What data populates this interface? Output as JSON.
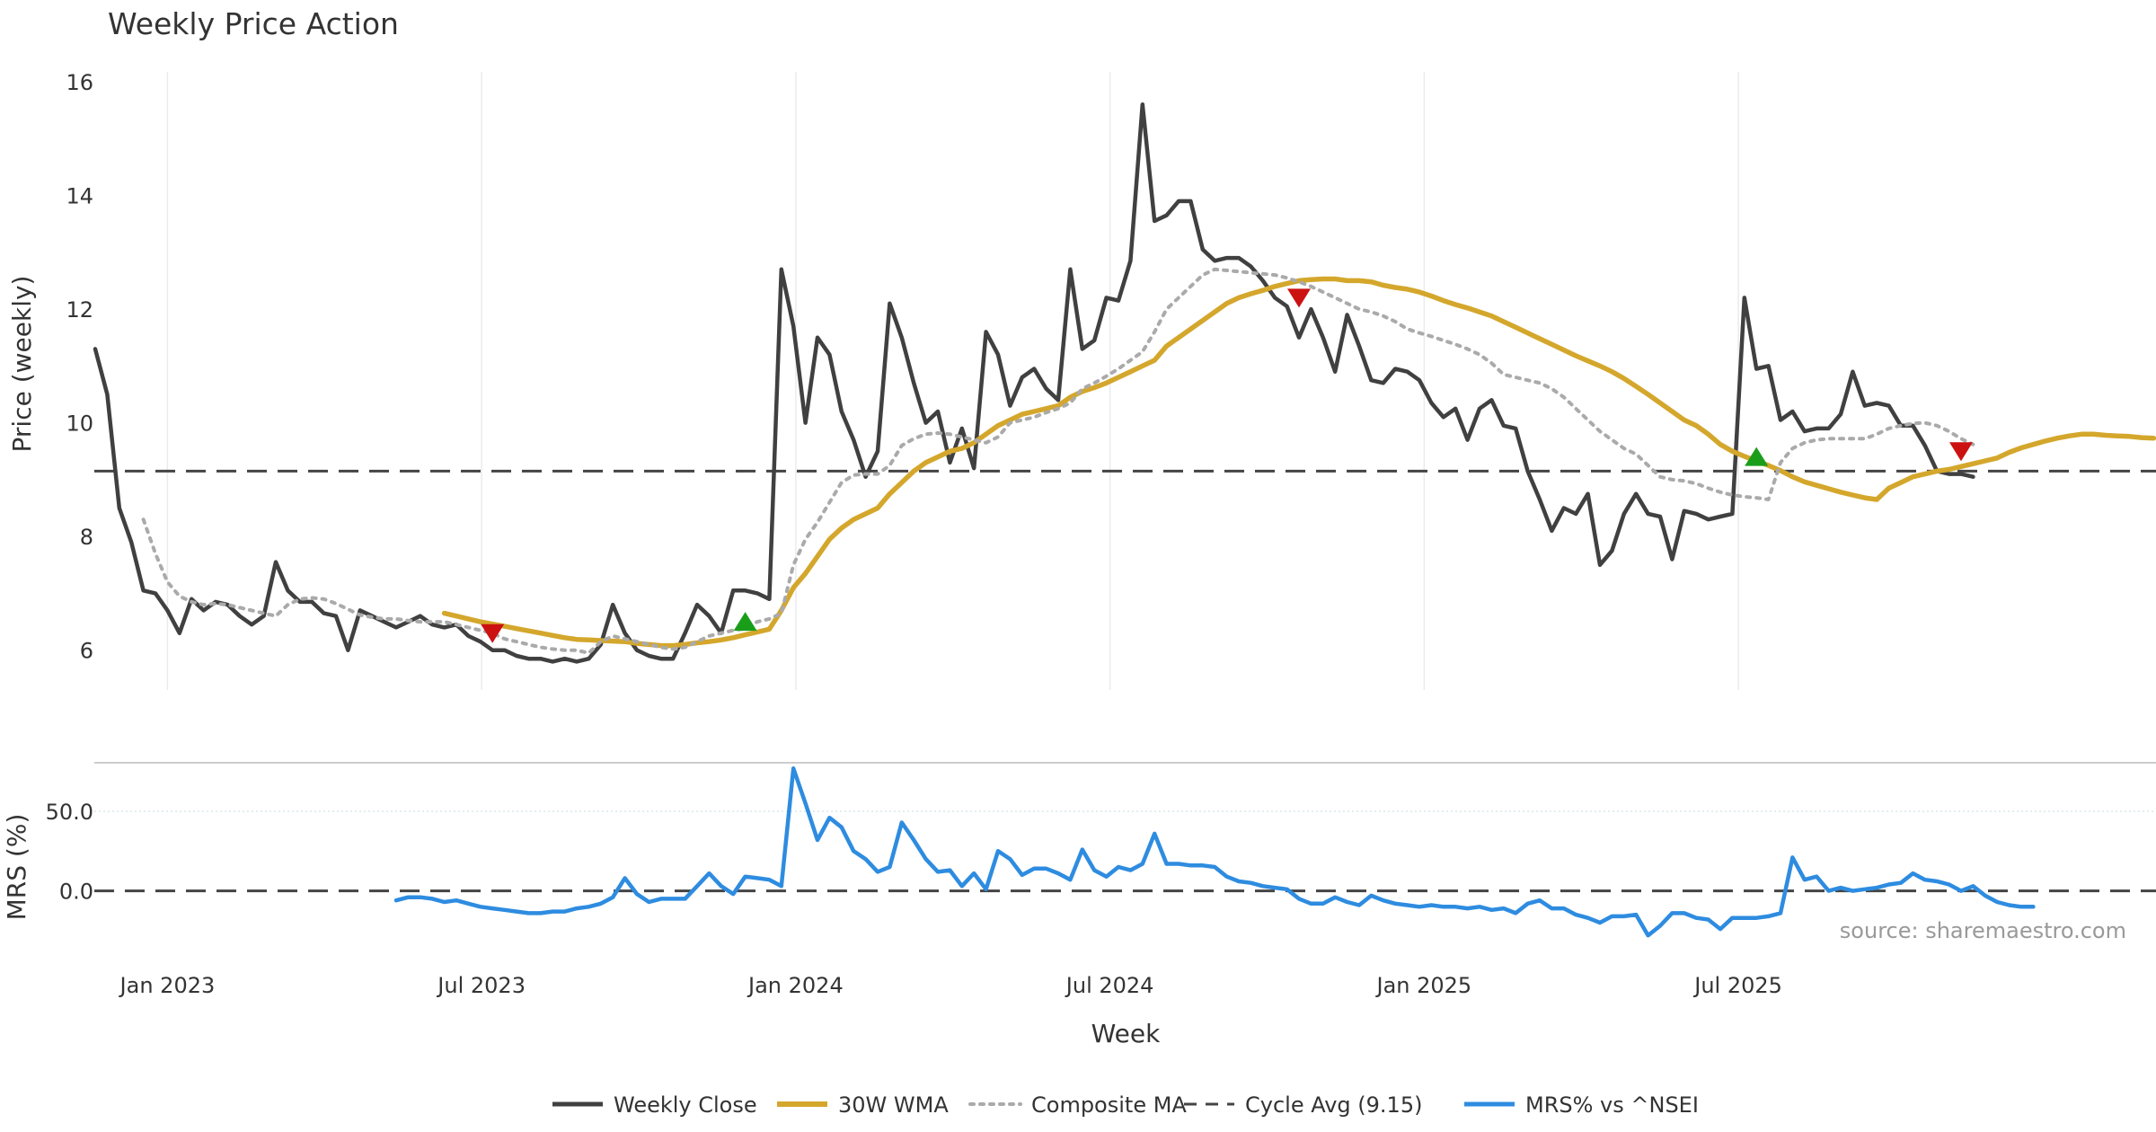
{
  "chart_data": {
    "type": "line",
    "title": "Weekly Price Action",
    "xlabel": "Week",
    "ylabel": "Price (weekly)",
    "ylabel_lower": "MRS (%)",
    "x_ticks": [
      "Jan 2023",
      "Jul 2023",
      "Jan 2024",
      "Jul 2024",
      "Jan 2025",
      "Jul 2025"
    ],
    "y_ticks": [
      "6",
      "8",
      "10",
      "12",
      "14",
      "16"
    ],
    "y_ticks_lower": [
      "0.0",
      "50.0"
    ],
    "ylim": [
      5.3,
      16.3
    ],
    "ylim_lower": [
      -33,
      80
    ],
    "week_range": [
      0,
      162
    ],
    "cycle_avg": 9.15,
    "source": "source: sharemaestro.com",
    "series": [
      {
        "name": "Weekly Close",
        "color": "#404040",
        "style": "solid",
        "start": 0,
        "values": [
          11.3,
          10.5,
          8.5,
          7.9,
          7.05,
          7.0,
          6.7,
          6.3,
          6.9,
          6.7,
          6.85,
          6.8,
          6.6,
          6.45,
          6.6,
          7.55,
          7.05,
          6.85,
          6.85,
          6.65,
          6.6,
          6.0,
          6.7,
          6.6,
          6.5,
          6.4,
          6.5,
          6.6,
          6.45,
          6.4,
          6.45,
          6.25,
          6.15,
          6.0,
          6.0,
          5.9,
          5.85,
          5.85,
          5.8,
          5.85,
          5.8,
          5.85,
          6.1,
          6.8,
          6.3,
          6.0,
          5.9,
          5.85,
          5.85,
          6.3,
          6.8,
          6.6,
          6.3,
          7.05,
          7.05,
          7.0,
          6.9,
          12.7,
          11.7,
          10.0,
          11.5,
          11.2,
          10.2,
          9.7,
          9.05,
          9.5,
          12.1,
          11.5,
          10.7,
          10.0,
          10.2,
          9.3,
          9.9,
          9.2,
          11.6,
          11.2,
          10.3,
          10.8,
          10.95,
          10.6,
          10.4,
          12.7,
          11.3,
          11.45,
          12.2,
          12.15,
          12.85,
          15.6,
          13.55,
          13.65,
          13.9,
          13.9,
          13.05,
          12.85,
          12.9,
          12.9,
          12.75,
          12.5,
          12.2,
          12.05,
          11.5,
          12.0,
          11.5,
          10.9,
          11.9,
          11.35,
          10.75,
          10.7,
          10.95,
          10.9,
          10.75,
          10.35,
          10.1,
          10.25,
          9.7,
          10.25,
          10.4,
          9.95,
          9.9,
          9.15,
          8.65,
          8.1,
          8.5,
          8.4,
          8.75,
          7.5,
          7.75,
          8.4,
          8.75,
          8.4,
          8.35,
          7.6,
          8.45,
          8.4,
          8.3,
          8.35,
          8.4,
          12.2,
          10.95,
          11.0,
          10.05,
          10.2,
          9.85,
          9.9,
          9.9,
          10.15,
          10.9,
          10.3,
          10.35,
          10.3,
          9.95,
          9.95,
          9.6,
          9.15,
          9.1,
          9.1,
          9.05
        ]
      },
      {
        "name": "30W WMA",
        "color": "#d4a72c",
        "style": "solid",
        "start": 29,
        "values": [
          6.65,
          6.6,
          6.55,
          6.5,
          6.46,
          6.42,
          6.38,
          6.34,
          6.3,
          6.26,
          6.22,
          6.19,
          6.18,
          6.17,
          6.16,
          6.15,
          6.12,
          6.1,
          6.08,
          6.08,
          6.1,
          6.13,
          6.15,
          6.18,
          6.22,
          6.27,
          6.32,
          6.37,
          6.7,
          7.1,
          7.35,
          7.65,
          7.95,
          8.15,
          8.3,
          8.4,
          8.5,
          8.75,
          8.95,
          9.15,
          9.3,
          9.4,
          9.5,
          9.55,
          9.65,
          9.8,
          9.95,
          10.05,
          10.15,
          10.2,
          10.25,
          10.3,
          10.45,
          10.55,
          10.62,
          10.7,
          10.8,
          10.9,
          11.0,
          11.1,
          11.35,
          11.5,
          11.65,
          11.8,
          11.95,
          12.1,
          12.2,
          12.27,
          12.33,
          12.4,
          12.45,
          12.5,
          12.52,
          12.53,
          12.53,
          12.5,
          12.5,
          12.48,
          12.42,
          12.38,
          12.35,
          12.3,
          12.23,
          12.15,
          12.08,
          12.02,
          11.95,
          11.88,
          11.78,
          11.68,
          11.58,
          11.48,
          11.38,
          11.28,
          11.18,
          11.09,
          11.0,
          10.9,
          10.78,
          10.64,
          10.5,
          10.35,
          10.2,
          10.05,
          9.95,
          9.8,
          9.62,
          9.5,
          9.41,
          9.33,
          9.25,
          9.16,
          9.05,
          8.96,
          8.9,
          8.84,
          8.78,
          8.73,
          8.68,
          8.65,
          8.85,
          8.95,
          9.05,
          9.1,
          9.15,
          9.18,
          9.23,
          9.28,
          9.33,
          9.38,
          9.48,
          9.56,
          9.62,
          9.68,
          9.73,
          9.77,
          9.8,
          9.8,
          9.78,
          9.77,
          9.76,
          9.74,
          9.73
        ]
      },
      {
        "name": "Composite MA",
        "color": "#aaaaaa",
        "style": "dotted",
        "start": 4,
        "values": [
          8.3,
          7.7,
          7.2,
          6.95,
          6.85,
          6.8,
          6.82,
          6.8,
          6.75,
          6.7,
          6.65,
          6.6,
          6.8,
          6.9,
          6.92,
          6.9,
          6.82,
          6.72,
          6.62,
          6.58,
          6.55,
          6.55,
          6.52,
          6.5,
          6.5,
          6.5,
          6.45,
          6.4,
          6.35,
          6.3,
          6.2,
          6.15,
          6.1,
          6.05,
          6.02,
          6.0,
          6.0,
          5.95,
          6.15,
          6.25,
          6.2,
          6.15,
          6.1,
          6.05,
          6.02,
          6.05,
          6.15,
          6.25,
          6.3,
          6.35,
          6.38,
          6.5,
          6.55,
          6.65,
          7.5,
          7.95,
          8.25,
          8.6,
          8.95,
          9.08,
          9.1,
          9.1,
          9.25,
          9.6,
          9.72,
          9.8,
          9.82,
          9.8,
          9.75,
          9.7,
          9.65,
          9.75,
          10.0,
          10.05,
          10.1,
          10.18,
          10.25,
          10.35,
          10.6,
          10.7,
          10.82,
          10.95,
          11.1,
          11.25,
          11.6,
          12.0,
          12.2,
          12.4,
          12.6,
          12.7,
          12.68,
          12.66,
          12.64,
          12.62,
          12.6,
          12.55,
          12.48,
          12.4,
          12.3,
          12.2,
          12.1,
          12.0,
          11.95,
          11.88,
          11.78,
          11.65,
          11.58,
          11.52,
          11.45,
          11.38,
          11.3,
          11.2,
          11.05,
          10.85,
          10.8,
          10.75,
          10.7,
          10.6,
          10.45,
          10.25,
          10.05,
          9.85,
          9.7,
          9.55,
          9.45,
          9.25,
          9.05,
          9.0,
          8.98,
          8.93,
          8.85,
          8.78,
          8.73,
          8.7,
          8.68,
          8.65,
          9.3,
          9.55,
          9.65,
          9.7,
          9.72,
          9.72,
          9.72,
          9.72,
          9.8,
          9.9,
          9.95,
          9.99,
          10.0,
          9.95,
          9.85,
          9.72,
          9.62
        ]
      },
      {
        "name": "MRS% vs ^NSEI",
        "color": "#2e8ce0",
        "style": "solid",
        "axis": "lower",
        "start": 25,
        "values": [
          -6,
          -4,
          -4,
          -5,
          -7,
          -6,
          -8,
          -10,
          -11,
          -12,
          -13,
          -14,
          -14,
          -13,
          -13,
          -11,
          -10,
          -8,
          -4,
          8,
          -2,
          -7,
          -5,
          -5,
          -5,
          3,
          11,
          3,
          -2,
          9,
          8,
          7,
          3,
          77,
          55,
          32,
          46,
          40,
          25,
          20,
          12,
          15,
          43,
          32,
          20,
          12,
          13,
          3,
          11,
          1,
          25,
          20,
          10,
          14,
          14,
          11,
          7,
          26,
          13,
          9,
          15,
          13,
          17,
          36,
          17,
          17,
          16,
          16,
          15,
          9,
          6,
          5,
          3,
          2,
          1,
          -5,
          -8,
          -8,
          -4,
          -7,
          -9,
          -3,
          -6,
          -8,
          -9,
          -10,
          -9,
          -10,
          -10,
          -11,
          -10,
          -12,
          -11,
          -14,
          -8,
          -6,
          -11,
          -11,
          -15,
          -17,
          -20,
          -16,
          -16,
          -15,
          -28,
          -22,
          -14,
          -14,
          -17,
          -18,
          -24,
          -17,
          -17,
          -17,
          -16,
          -14,
          21,
          7,
          9,
          0,
          2,
          0,
          1,
          2,
          4,
          5,
          11,
          7,
          6,
          4,
          0,
          3,
          -3,
          -7,
          -9,
          -10,
          -10
        ]
      }
    ],
    "signals": [
      {
        "week": 33,
        "value": 6.3,
        "kind": "sell"
      },
      {
        "week": 54,
        "value": 6.5,
        "kind": "buy"
      },
      {
        "week": 100,
        "value": 12.2,
        "kind": "sell"
      },
      {
        "week": 138,
        "value": 9.4,
        "kind": "buy"
      },
      {
        "week": 155,
        "value": 9.5,
        "kind": "sell"
      }
    ],
    "legend": [
      "Weekly Close",
      "30W WMA",
      "Composite MA",
      "Cycle Avg (9.15)",
      "MRS% vs ^NSEI"
    ],
    "legend_placement": "bottom-center"
  }
}
